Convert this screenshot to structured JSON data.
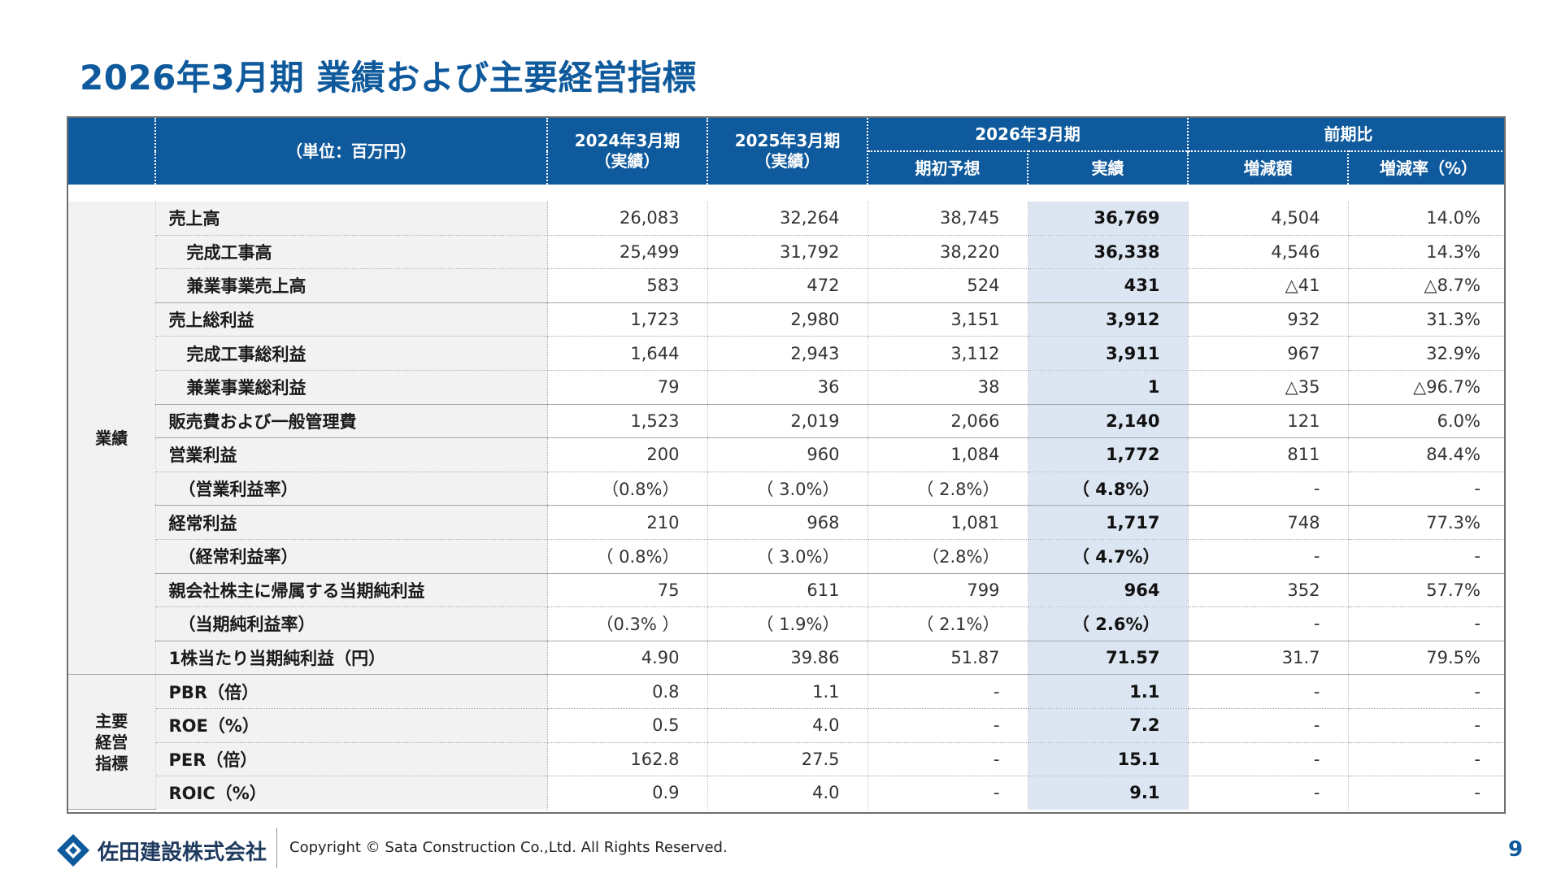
{
  "title": "2026年3月期 業績および主要経営指標",
  "header": {
    "unit": "（単位：百万円）",
    "col_2024": [
      "2024年3月期",
      "（実績）"
    ],
    "col_2025": [
      "2025年3月期",
      "（実績）"
    ],
    "col_2026": "2026年3月期",
    "col_yoy": "前期比",
    "sub_forecast": "期初予想",
    "sub_actual": "実績",
    "sub_change": "増減額",
    "sub_rate": "増減率（%）"
  },
  "categories": {
    "performance": "業績",
    "indicators": "主要経営指標",
    "indicators_lines": [
      "主要",
      "経営",
      "指標"
    ]
  },
  "rows": [
    {
      "label": "売上高",
      "v2024": "26,083",
      "v2025": "32,264",
      "forecast": "38,745",
      "actual": "36,769",
      "change": "4,504",
      "rate": "14.0%"
    },
    {
      "label": "完成工事高",
      "v2024": "25,499",
      "v2025": "31,792",
      "forecast": "38,220",
      "actual": "36,338",
      "change": "4,546",
      "rate": "14.3%"
    },
    {
      "label": "兼業事業売上高",
      "v2024": "583",
      "v2025": "472",
      "forecast": "524",
      "actual": "431",
      "change": "△41",
      "rate": "△8.7%"
    },
    {
      "label": "売上総利益",
      "v2024": "1,723",
      "v2025": "2,980",
      "forecast": "3,151",
      "actual": "3,912",
      "change": "932",
      "rate": "31.3%"
    },
    {
      "label": "完成工事総利益",
      "v2024": "1,644",
      "v2025": "2,943",
      "forecast": "3,112",
      "actual": "3,911",
      "change": "967",
      "rate": "32.9%"
    },
    {
      "label": "兼業事業総利益",
      "v2024": "79",
      "v2025": "36",
      "forecast": "38",
      "actual": "1",
      "change": "△35",
      "rate": "△96.7%"
    },
    {
      "label": "販売費および一般管理費",
      "v2024": "1,523",
      "v2025": "2,019",
      "forecast": "2,066",
      "actual": "2,140",
      "change": "121",
      "rate": "6.0%"
    },
    {
      "label": "営業利益",
      "v2024": "200",
      "v2025": "960",
      "forecast": "1,084",
      "actual": "1,772",
      "change": "811",
      "rate": "84.4%"
    },
    {
      "label": "（営業利益率）",
      "v2024": "（0.8%）",
      "v2025": "（ 3.0%）",
      "forecast": "（ 2.8%）",
      "actual": "（ 4.8%）",
      "change": "-",
      "rate": "-"
    },
    {
      "label": "経常利益",
      "v2024": "210",
      "v2025": "968",
      "forecast": "1,081",
      "actual": "1,717",
      "change": "748",
      "rate": "77.3%"
    },
    {
      "label": "（経常利益率）",
      "v2024": "（ 0.8%）",
      "v2025": "（ 3.0%）",
      "forecast": "（2.8%）",
      "actual": "（ 4.7%）",
      "change": "-",
      "rate": "-"
    },
    {
      "label": "親会社株主に帰属する当期純利益",
      "v2024": "75",
      "v2025": "611",
      "forecast": "799",
      "actual": "964",
      "change": "352",
      "rate": "57.7%"
    },
    {
      "label": "（当期純利益率）",
      "v2024": "（0.3% ）",
      "v2025": "（ 1.9%）",
      "forecast": "（ 2.1%）",
      "actual": "（ 2.6%）",
      "change": "-",
      "rate": "-"
    },
    {
      "label": "1株当たり当期純利益（円）",
      "v2024": "4.90",
      "v2025": "39.86",
      "forecast": "51.87",
      "actual": "71.57",
      "change": "31.7",
      "rate": "79.5%"
    },
    {
      "label": "PBR（倍）",
      "v2024": "0.8",
      "v2025": "1.1",
      "forecast": "-",
      "actual": "1.1",
      "change": "-",
      "rate": "-"
    },
    {
      "label": "ROE（%）",
      "v2024": "0.5",
      "v2025": "4.0",
      "forecast": "-",
      "actual": "7.2",
      "change": "-",
      "rate": "-"
    },
    {
      "label": "PER（倍）",
      "v2024": "162.8",
      "v2025": "27.5",
      "forecast": "-",
      "actual": "15.1",
      "change": "-",
      "rate": "-"
    },
    {
      "label": "ROIC（%）",
      "v2024": "0.9",
      "v2025": "4.0",
      "forecast": "-",
      "actual": "9.1",
      "change": "-",
      "rate": "-"
    }
  ],
  "footer": {
    "company": "佐田建設株式会社",
    "copyright": "Copyright © Sata Construction Co.,Ltd. All Rights Reserved.",
    "page": "9"
  },
  "colors": {
    "accent": "#0f5a9c",
    "highlight": "#dce6f2",
    "label_bg": "#f2f2f2"
  }
}
